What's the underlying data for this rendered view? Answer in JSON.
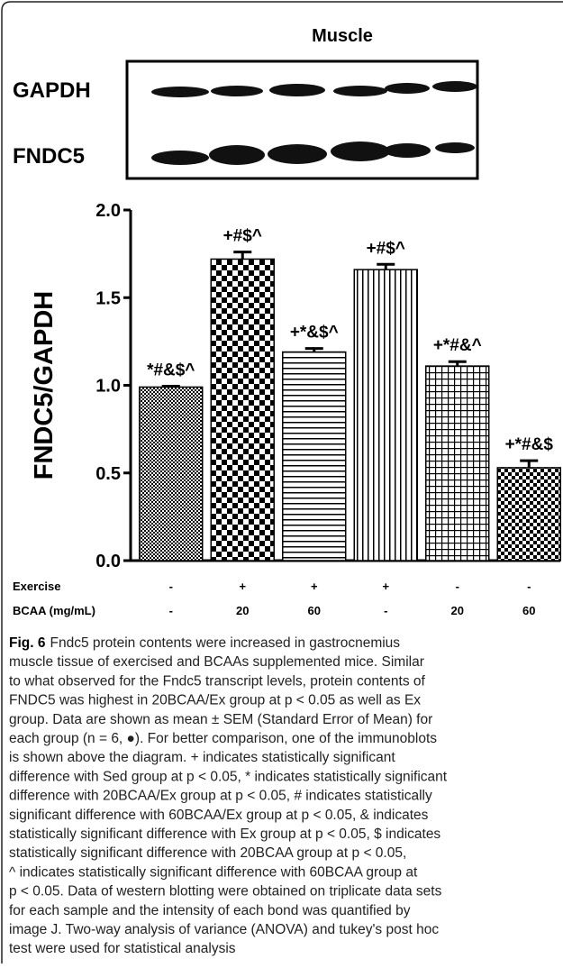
{
  "figure": {
    "title": "Muscle"
  },
  "blot": {
    "labels": [
      "GAPDH",
      "FNDC5"
    ]
  },
  "chart_data": {
    "type": "bar",
    "y_label": "FNDC5/GAPDH",
    "values": [
      0.99,
      1.72,
      1.19,
      1.66,
      1.11,
      0.53
    ],
    "errors": [
      0.005,
      0.04,
      0.02,
      0.03,
      0.025,
      0.04
    ],
    "annotations": [
      "*#&$^",
      "+#$^",
      "+*&$^",
      "+#$^",
      "+*#&^",
      "+*#&$"
    ],
    "conditions": [
      {
        "name": "Exercise",
        "values": [
          "-",
          "+",
          "+",
          "+",
          "-",
          "-"
        ]
      },
      {
        "name": "BCAA (mg/mL)",
        "values": [
          "-",
          "20",
          "60",
          "-",
          "20",
          "60"
        ]
      }
    ],
    "color": "#000000",
    "ylim": [
      0,
      2
    ],
    "yticks": [
      {
        "value": 0,
        "label": "0.0"
      },
      {
        "value": 0.5,
        "label": "0.5"
      },
      {
        "value": 1,
        "label": "1.0"
      },
      {
        "value": 1.5,
        "label": "1.5"
      },
      {
        "value": 2,
        "label": "2.0"
      }
    ]
  },
  "caption": {
    "label": "Fig. 6",
    "lines": [
      "Fndc5 protein contents were increased in gastrocnemius",
      "muscle tissue of exercised and BCAAs supplemented mice. Similar",
      "to what observed for the Fndc5 transcript levels, protein contents of",
      "FNDC5 was highest in 20BCAA/Ex group at p < 0.05 as well as Ex",
      "group. Data are shown as mean ± SEM (Standard Error of Mean) for",
      "each group (n = 6, ●). For better comparison, one of the immunoblots",
      "is shown above the diagram. + indicates statistically significant",
      "difference with Sed group at p < 0.05, * indicates statistically significant",
      "difference with 20BCAA/Ex group at p < 0.05, # indicates statistically",
      "significant difference with 60BCAA/Ex group at p < 0.05, & indicates",
      "statistically significant difference with Ex group at p < 0.05, $ indicates",
      "statistically significant difference with 20BCAA group at p < 0.05,",
      "^ indicates statistically significant difference with 60BCAA group at",
      "p < 0.05. Data of western blotting were obtained on triplicate data sets",
      "for each sample and the intensity of each bond was quantified by",
      "image J. Two-way analysis of variance (ANOVA) and tukey's post hoc",
      "test were used for statistical analysis"
    ]
  }
}
